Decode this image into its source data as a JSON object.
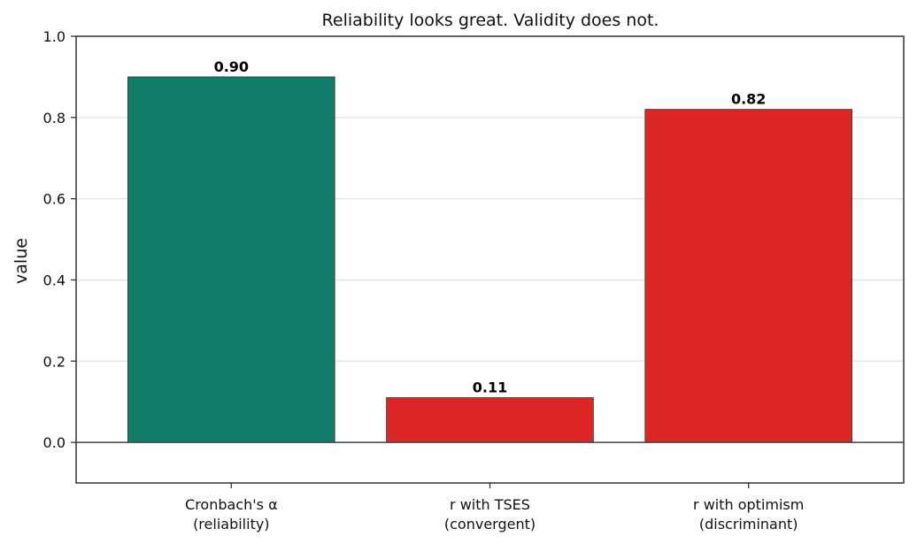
{
  "chart_data": {
    "type": "bar",
    "title": "Reliability looks great. Validity does not.",
    "xlabel": "",
    "ylabel": "value",
    "ylim": [
      -0.1,
      1.0
    ],
    "yticks": [
      "0.0",
      "0.2",
      "0.4",
      "0.6",
      "0.8",
      "1.0"
    ],
    "grid": "horizontal",
    "categories": [
      [
        "Cronbach's α",
        "(reliability)"
      ],
      [
        "r with TSES",
        "(convergent)"
      ],
      [
        "r with optimism",
        "(discriminant)"
      ]
    ],
    "values": [
      0.9,
      0.11,
      0.82
    ],
    "value_labels": [
      "0.90",
      "0.11",
      "0.82"
    ],
    "colors": [
      "#117d69",
      "#dc2626",
      "#dc2626"
    ]
  }
}
